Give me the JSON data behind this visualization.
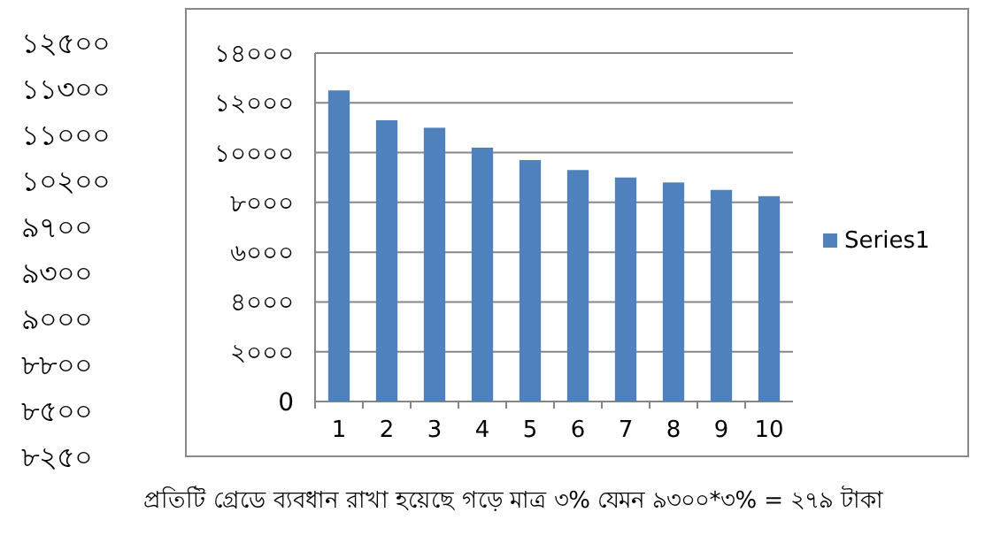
{
  "chart_data": {
    "type": "bar",
    "categories": [
      "1",
      "2",
      "3",
      "4",
      "5",
      "6",
      "7",
      "8",
      "9",
      "10"
    ],
    "series": [
      {
        "name": "Series1",
        "color": "#4f81bd",
        "values": [
          12500,
          11300,
          11000,
          10200,
          9700,
          9300,
          9000,
          8800,
          8500,
          8250
        ]
      }
    ],
    "ylim": [
      0,
      14000
    ],
    "yticks": [
      {
        "value": 0,
        "label": "0"
      },
      {
        "value": 2000,
        "label": "২০০০"
      },
      {
        "value": 4000,
        "label": "৪০০০"
      },
      {
        "value": 6000,
        "label": "৬০০০"
      },
      {
        "value": 8000,
        "label": "৮০০০"
      },
      {
        "value": 10000,
        "label": "১০০০০"
      },
      {
        "value": 12000,
        "label": "১২০০০"
      },
      {
        "value": 14000,
        "label": "১৪০০০"
      }
    ],
    "grid": "y",
    "legend": "right",
    "annotations": [
      "১২৫০০",
      "১১৩০০",
      "১১০০০",
      "১০২০০",
      "৯৭০০",
      "৯৩০০",
      "৯০০০",
      "৮৮০০",
      "৮৫০০",
      "৮২৫০",
      "প্রতিটি গ্রেডে ব্যবধান রাখা হয়েছে গড়ে মাত্র ৩% যেমন ৯৩০০*৩% = ২৭৯ টাকা"
    ]
  }
}
